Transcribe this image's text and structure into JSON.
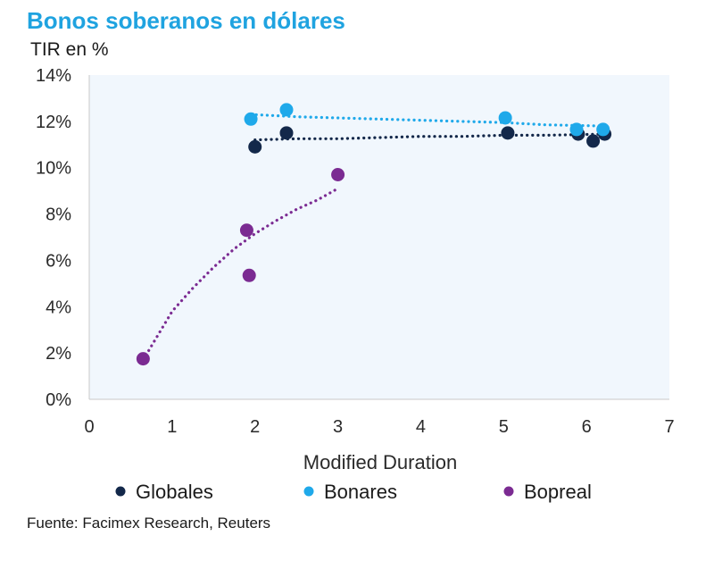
{
  "chart_data": {
    "type": "scatter",
    "title": "Bonos soberanos en dólares",
    "ylabel": "TIR en %",
    "xlabel": "Modified Duration",
    "xlim": [
      0,
      7
    ],
    "ylim": [
      0,
      14
    ],
    "x_ticks": [
      "0",
      "1",
      "2",
      "3",
      "4",
      "5",
      "6",
      "7"
    ],
    "y_ticks": [
      "0%",
      "2%",
      "4%",
      "6%",
      "8%",
      "10%",
      "12%",
      "14%"
    ],
    "series": [
      {
        "name": "Globales",
        "color": "#13284a",
        "points": [
          [
            2.0,
            10.9
          ],
          [
            2.38,
            11.5
          ],
          [
            5.05,
            11.5
          ],
          [
            5.9,
            11.45
          ],
          [
            6.08,
            11.15
          ],
          [
            6.22,
            11.45
          ]
        ],
        "trend": [
          [
            2.0,
            11.2
          ],
          [
            2.5,
            11.25
          ],
          [
            3.0,
            11.25
          ],
          [
            3.5,
            11.3
          ],
          [
            4.0,
            11.35
          ],
          [
            4.5,
            11.35
          ],
          [
            5.0,
            11.4
          ],
          [
            5.5,
            11.4
          ],
          [
            6.22,
            11.45
          ]
        ]
      },
      {
        "name": "Bonares",
        "color": "#1fa9ea",
        "points": [
          [
            1.95,
            12.1
          ],
          [
            2.38,
            12.5
          ],
          [
            5.02,
            12.15
          ],
          [
            5.88,
            11.65
          ],
          [
            6.2,
            11.65
          ]
        ],
        "trend": [
          [
            1.95,
            12.3
          ],
          [
            2.5,
            12.2
          ],
          [
            3.0,
            12.15
          ],
          [
            3.5,
            12.1
          ],
          [
            4.0,
            12.05
          ],
          [
            4.5,
            12.0
          ],
          [
            5.0,
            11.95
          ],
          [
            5.5,
            11.85
          ],
          [
            6.2,
            11.8
          ]
        ]
      },
      {
        "name": "Bopreal",
        "color": "#7b2b92",
        "points": [
          [
            0.65,
            1.75
          ],
          [
            1.9,
            7.3
          ],
          [
            1.93,
            5.35
          ],
          [
            3.0,
            9.7
          ]
        ],
        "trend": [
          [
            0.65,
            1.7
          ],
          [
            0.8,
            2.6
          ],
          [
            1.0,
            3.8
          ],
          [
            1.25,
            4.8
          ],
          [
            1.5,
            5.7
          ],
          [
            1.75,
            6.5
          ],
          [
            2.0,
            7.15
          ],
          [
            2.25,
            7.7
          ],
          [
            2.5,
            8.2
          ],
          [
            2.75,
            8.6
          ],
          [
            3.0,
            9.1
          ]
        ]
      }
    ],
    "source": "Fuente: Facimex Research, Reuters"
  }
}
